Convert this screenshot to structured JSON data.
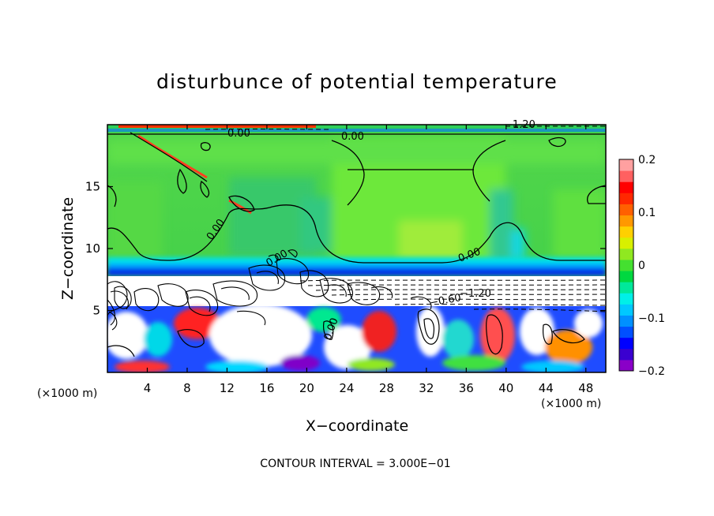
{
  "chart_data": {
    "type": "heatmap",
    "title": "disturbunce of potential temperature",
    "xlabel": "X−coordinate",
    "ylabel": "Z−coordinate",
    "x_unit": "(×1000 m)",
    "y_unit": "(×1000 m)",
    "xlim": [
      0,
      50
    ],
    "ylim": [
      0,
      20
    ],
    "x_ticks": [
      4,
      8,
      12,
      16,
      20,
      24,
      28,
      32,
      36,
      40,
      44,
      48
    ],
    "y_ticks": [
      5,
      10,
      15
    ],
    "colorbar": {
      "range": [
        -0.2,
        0.2
      ],
      "tick_values": [
        0.2,
        0.1,
        0,
        -0.1,
        -0.2
      ],
      "tick_labels": [
        "0.2",
        "0.1",
        "0",
        "−0.1",
        "−0.2"
      ],
      "colors": [
        "#8a00c8",
        "#3a00d0",
        "#0000ff",
        "#0050ff",
        "#0090ff",
        "#00c8ff",
        "#00f0e8",
        "#00e89a",
        "#00d840",
        "#44e030",
        "#90e820",
        "#d8f000",
        "#ffd000",
        "#ff9800",
        "#ff6000",
        "#ff2800",
        "#ff0000",
        "#ff6060",
        "#ffa0a0"
      ]
    },
    "contour_labels": [
      "0.00",
      "0.00",
      "0.00",
      "0.00",
      "0.00",
      "0.00",
      "−0.60",
      "−1.20",
      "−1.20"
    ],
    "note": "CONTOUR INTERVAL = 3.000E−01"
  }
}
